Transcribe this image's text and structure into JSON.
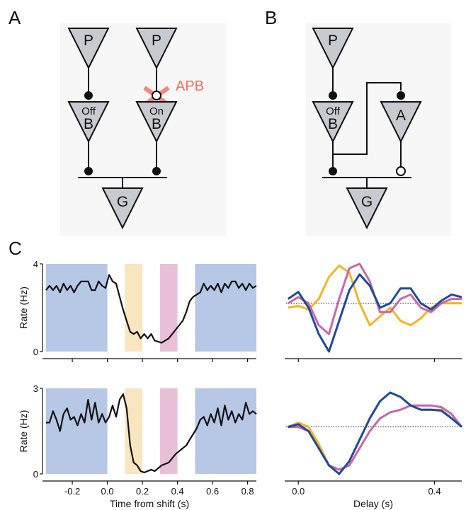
{
  "panels": {
    "a": {
      "label": "A",
      "cells": {
        "p1": "P",
        "p2": "P",
        "b1_top": "Off",
        "b1_bot": "B",
        "b2_top": "On",
        "b2_bot": "B",
        "g": "G"
      },
      "drug": "APB"
    },
    "b": {
      "label": "B",
      "cells": {
        "p": "P",
        "b_top": "Off",
        "b_bot": "B",
        "a": "A",
        "g": "G"
      }
    },
    "c": {
      "label": "C"
    }
  },
  "colors": {
    "blue_band": "#b7c7e6",
    "yellow_band": "#f8e6c0",
    "pink_band": "#e9c0d8",
    "trace": "#111111",
    "yellow": "#f5b520",
    "pink": "#c866a8",
    "blue": "#1f4a9c",
    "apb": "#f26d5b",
    "cell_fill": "#c9c9d0"
  },
  "chart_data": [
    {
      "type": "line",
      "ylabel": "Rate (Hz)",
      "xlabel": "",
      "xlim": [
        -0.37,
        0.85
      ],
      "ylim": [
        0,
        4
      ],
      "yticks": [
        "0",
        "4"
      ],
      "xticks": [
        -0.2,
        0,
        0.2,
        0.4,
        0.6,
        0.8
      ],
      "bands": [
        {
          "color": "blue",
          "x": [
            -0.35,
            0.0
          ]
        },
        {
          "color": "yellow",
          "x": [
            0.1,
            0.2
          ]
        },
        {
          "color": "pink",
          "x": [
            0.3,
            0.4
          ]
        },
        {
          "color": "blue",
          "x": [
            0.5,
            0.85
          ]
        }
      ],
      "series": [
        {
          "x": [
            -0.35,
            -0.33,
            -0.31,
            -0.29,
            -0.27,
            -0.25,
            -0.23,
            -0.21,
            -0.19,
            -0.17,
            -0.15,
            -0.13,
            -0.11,
            -0.09,
            -0.07,
            -0.05,
            -0.03,
            -0.01,
            0.01,
            0.03,
            0.05,
            0.07,
            0.09,
            0.11,
            0.13,
            0.15,
            0.17,
            0.19,
            0.21,
            0.23,
            0.25,
            0.27,
            0.29,
            0.31,
            0.33,
            0.35,
            0.37,
            0.39,
            0.41,
            0.43,
            0.45,
            0.47,
            0.49,
            0.51,
            0.53,
            0.55,
            0.57,
            0.59,
            0.61,
            0.63,
            0.65,
            0.67,
            0.69,
            0.71,
            0.73,
            0.75,
            0.77,
            0.79,
            0.81,
            0.83,
            0.85
          ],
          "y": [
            2.8,
            3.0,
            2.8,
            3.0,
            2.7,
            3.1,
            2.8,
            3.0,
            2.7,
            3.0,
            3.2,
            3.2,
            3.2,
            2.8,
            2.8,
            3.2,
            3.0,
            2.9,
            3.5,
            3.2,
            3.1,
            2.5,
            1.9,
            1.4,
            0.9,
            0.8,
            0.9,
            0.6,
            0.8,
            0.6,
            0.8,
            0.5,
            0.45,
            0.4,
            0.5,
            0.6,
            0.8,
            1.0,
            1.2,
            1.4,
            1.8,
            2.3,
            2.5,
            2.6,
            2.7,
            3.1,
            2.8,
            3.0,
            2.8,
            3.1,
            2.7,
            3.1,
            2.9,
            3.2,
            3.2,
            2.9,
            3.1,
            2.8,
            3.1,
            2.9,
            3.0
          ]
        }
      ]
    },
    {
      "type": "line",
      "xlabel": "",
      "ylabel": "",
      "xlim": [
        -0.04,
        0.48
      ],
      "baseline": 0.55,
      "series": [
        {
          "color": "yellow",
          "x": [
            -0.03,
            0,
            0.03,
            0.06,
            0.09,
            0.12,
            0.15,
            0.18,
            0.21,
            0.24,
            0.27,
            0.3,
            0.33,
            0.36,
            0.39,
            0.42,
            0.45,
            0.48
          ],
          "y": [
            0.5,
            0.52,
            0.48,
            0.6,
            0.85,
            0.98,
            0.9,
            0.55,
            0.3,
            0.4,
            0.5,
            0.35,
            0.3,
            0.38,
            0.5,
            0.55,
            0.55,
            0.55
          ]
        },
        {
          "color": "pink",
          "x": [
            -0.03,
            0,
            0.03,
            0.06,
            0.09,
            0.12,
            0.15,
            0.18,
            0.21,
            0.24,
            0.27,
            0.3,
            0.33,
            0.36,
            0.39,
            0.42,
            0.45,
            0.48
          ],
          "y": [
            0.55,
            0.62,
            0.55,
            0.3,
            0.2,
            0.6,
            0.95,
            1.0,
            0.8,
            0.45,
            0.45,
            0.6,
            0.65,
            0.5,
            0.45,
            0.55,
            0.6,
            0.6
          ]
        },
        {
          "color": "blue",
          "x": [
            -0.03,
            0,
            0.03,
            0.06,
            0.09,
            0.12,
            0.15,
            0.18,
            0.21,
            0.24,
            0.27,
            0.3,
            0.33,
            0.36,
            0.39,
            0.42,
            0.45,
            0.48
          ],
          "y": [
            0.6,
            0.68,
            0.5,
            0.2,
            0.0,
            0.35,
            0.7,
            0.88,
            0.75,
            0.5,
            0.55,
            0.72,
            0.72,
            0.55,
            0.48,
            0.58,
            0.65,
            0.62
          ]
        }
      ]
    },
    {
      "type": "line",
      "ylabel": "Rate (Hz)",
      "xlabel": "Time from shift (s)",
      "xlim": [
        -0.37,
        0.85
      ],
      "ylim": [
        0,
        3
      ],
      "yticks": [
        "0",
        "3"
      ],
      "xticks": [
        -0.2,
        0,
        0.2,
        0.4,
        0.6,
        0.8
      ],
      "xtick_labels": [
        "-0.2",
        "0.0",
        "0.2",
        "0.4",
        "0.6",
        "0.8"
      ],
      "bands": [
        {
          "color": "blue",
          "x": [
            -0.35,
            0.0
          ]
        },
        {
          "color": "yellow",
          "x": [
            0.1,
            0.2
          ]
        },
        {
          "color": "pink",
          "x": [
            0.3,
            0.4
          ]
        },
        {
          "color": "blue",
          "x": [
            0.5,
            0.85
          ]
        }
      ],
      "series": [
        {
          "x": [
            -0.35,
            -0.33,
            -0.31,
            -0.29,
            -0.27,
            -0.25,
            -0.23,
            -0.21,
            -0.19,
            -0.17,
            -0.15,
            -0.13,
            -0.11,
            -0.09,
            -0.07,
            -0.05,
            -0.03,
            -0.01,
            0.01,
            0.03,
            0.05,
            0.07,
            0.09,
            0.11,
            0.13,
            0.15,
            0.17,
            0.19,
            0.21,
            0.23,
            0.25,
            0.27,
            0.29,
            0.31,
            0.33,
            0.35,
            0.37,
            0.39,
            0.41,
            0.43,
            0.45,
            0.47,
            0.49,
            0.51,
            0.53,
            0.55,
            0.57,
            0.59,
            0.61,
            0.63,
            0.65,
            0.67,
            0.69,
            0.71,
            0.73,
            0.75,
            0.77,
            0.79,
            0.81,
            0.83,
            0.85
          ],
          "y": [
            1.8,
            1.8,
            2.2,
            1.9,
            1.5,
            2.1,
            2.3,
            1.9,
            2.0,
            1.7,
            2.1,
            1.8,
            2.6,
            1.9,
            2.5,
            1.8,
            2.1,
            1.8,
            2.0,
            2.4,
            2.0,
            2.6,
            2.8,
            2.3,
            1.0,
            0.4,
            0.3,
            0.1,
            0.05,
            0.1,
            0.15,
            0.1,
            0.2,
            0.3,
            0.35,
            0.4,
            0.55,
            0.7,
            0.8,
            0.9,
            1.0,
            1.2,
            1.4,
            1.6,
            1.9,
            2.0,
            1.7,
            2.1,
            1.8,
            2.3,
            1.7,
            2.4,
            1.9,
            2.2,
            1.8,
            2.1,
            1.9,
            2.5,
            2.1,
            2.2,
            2.1
          ]
        }
      ]
    },
    {
      "type": "line",
      "xlabel": "Delay (s)",
      "ylabel": "",
      "xlim": [
        -0.04,
        0.48
      ],
      "xticks": [
        0.0,
        0.4
      ],
      "xtick_labels": [
        "0.0",
        "0.4"
      ],
      "baseline": 0.55,
      "series": [
        {
          "color": "yellow",
          "x": [
            -0.03,
            0,
            0.03,
            0.06,
            0.09,
            0.12,
            0.15,
            0.18,
            0.21,
            0.24,
            0.27,
            0.3,
            0.33,
            0.36,
            0.39,
            0.42,
            0.45,
            0.48
          ],
          "y": [
            0.55,
            0.6,
            0.55,
            0.35,
            0.1,
            0.0,
            0.15,
            0.4,
            0.65,
            0.85,
            0.95,
            0.9,
            0.8,
            0.75,
            0.75,
            0.75,
            0.65,
            0.55
          ]
        },
        {
          "color": "pink",
          "x": [
            -0.03,
            0,
            0.03,
            0.06,
            0.09,
            0.12,
            0.15,
            0.18,
            0.21,
            0.24,
            0.27,
            0.3,
            0.33,
            0.36,
            0.39,
            0.42,
            0.45,
            0.48
          ],
          "y": [
            0.55,
            0.55,
            0.5,
            0.3,
            0.1,
            0.05,
            0.1,
            0.3,
            0.5,
            0.65,
            0.72,
            0.75,
            0.8,
            0.8,
            0.8,
            0.78,
            0.7,
            0.55
          ]
        },
        {
          "color": "blue",
          "x": [
            -0.03,
            0,
            0.03,
            0.06,
            0.09,
            0.12,
            0.15,
            0.18,
            0.21,
            0.24,
            0.27,
            0.3,
            0.33,
            0.36,
            0.39,
            0.42,
            0.45,
            0.48
          ],
          "y": [
            0.55,
            0.58,
            0.5,
            0.3,
            0.1,
            0.0,
            0.15,
            0.4,
            0.65,
            0.85,
            0.95,
            0.9,
            0.8,
            0.75,
            0.75,
            0.74,
            0.65,
            0.55
          ]
        }
      ]
    }
  ]
}
